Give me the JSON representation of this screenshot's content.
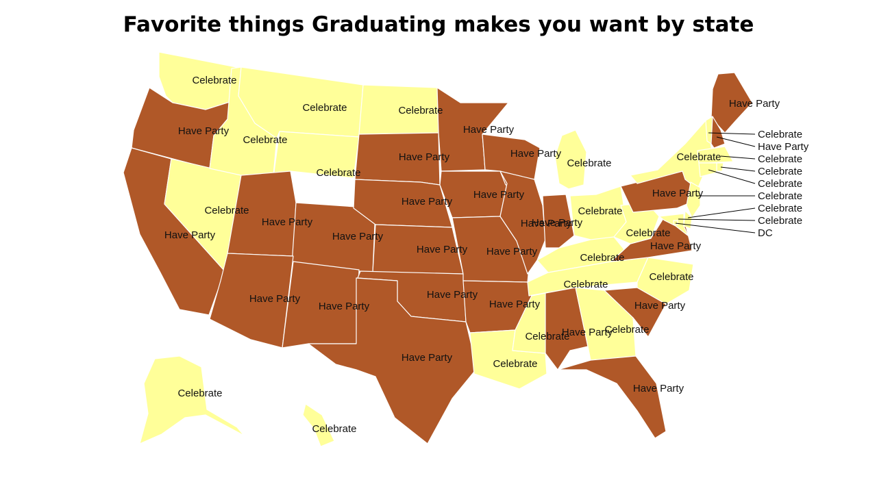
{
  "title": "Favorite things Graduating makes you want by state",
  "colors": {
    "Celebrate": "#ffff99",
    "Have Party": "#b05828",
    "border": "#ffffff"
  },
  "states": {
    "WA": "Celebrate",
    "OR": "Have Party",
    "CA": "Have Party",
    "NV": "Celebrate",
    "ID": "Celebrate",
    "MT": "Celebrate",
    "WY": "Celebrate",
    "UT": "Have Party",
    "AZ": "Have Party",
    "CO": "Have Party",
    "NM": "Have Party",
    "ND": "Celebrate",
    "SD": "Have Party",
    "NE": "Have Party",
    "KS": "Have Party",
    "OK": "Have Party",
    "TX": "Have Party",
    "MN": "Have Party",
    "IA": "Have Party",
    "MO": "Have Party",
    "AR": "Have Party",
    "LA": "Celebrate",
    "WI": "Have Party",
    "IL": "Have Party",
    "MI": "Celebrate",
    "IN": "Have Party",
    "OH": "Celebrate",
    "KY": "Celebrate",
    "TN": "Celebrate",
    "MS": "Celebrate",
    "AL": "Have Party",
    "GA": "Celebrate",
    "FL": "Have Party",
    "SC": "Have Party",
    "NC": "Celebrate",
    "VA": "Have Party",
    "WV": "Celebrate",
    "PA": "Have Party",
    "NY": "Celebrate",
    "ME": "Have Party",
    "AK": "Celebrate",
    "HI": "Celebrate",
    "VT": "Celebrate",
    "NH": "Have Party",
    "MA": "Celebrate",
    "RI": "Celebrate",
    "CT": "Celebrate",
    "NJ": "Celebrate",
    "DE": "Celebrate",
    "MD": "Celebrate",
    "DC": "DC"
  },
  "callouts": [
    {
      "state": "VT",
      "label": "Celebrate"
    },
    {
      "state": "NH",
      "label": "Have Party"
    },
    {
      "state": "MA",
      "label": "Celebrate"
    },
    {
      "state": "RI",
      "label": "Celebrate"
    },
    {
      "state": "CT",
      "label": "Celebrate"
    },
    {
      "state": "NJ",
      "label": "Celebrate"
    },
    {
      "state": "DE",
      "label": "Celebrate"
    },
    {
      "state": "MD",
      "label": "Celebrate"
    },
    {
      "state": "DC",
      "label": "DC"
    }
  ]
}
